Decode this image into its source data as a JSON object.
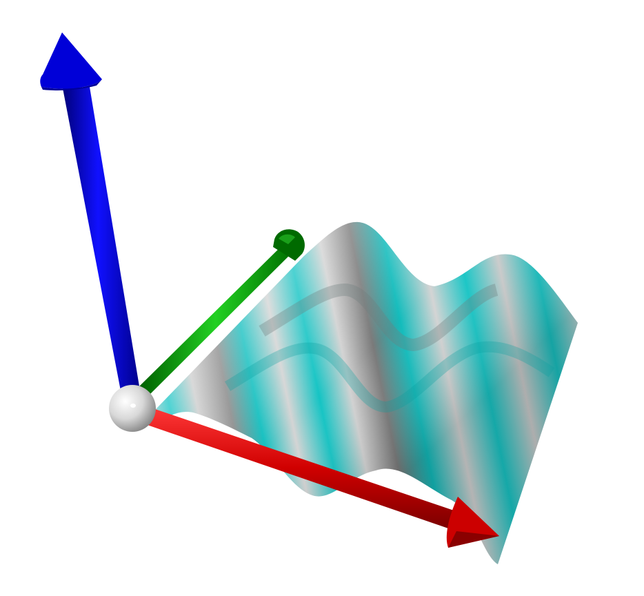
{
  "scene": {
    "axes": [
      {
        "axis": "x",
        "color": "#d40000"
      },
      {
        "axis": "y",
        "color": "#00b000"
      },
      {
        "axis": "z",
        "color": "#0000cc"
      }
    ],
    "origin": {
      "color": "#d8d8d8"
    },
    "surface": {
      "colors": [
        "#c7c7c7",
        "#16c5c5",
        "#7a8f8f"
      ]
    }
  }
}
